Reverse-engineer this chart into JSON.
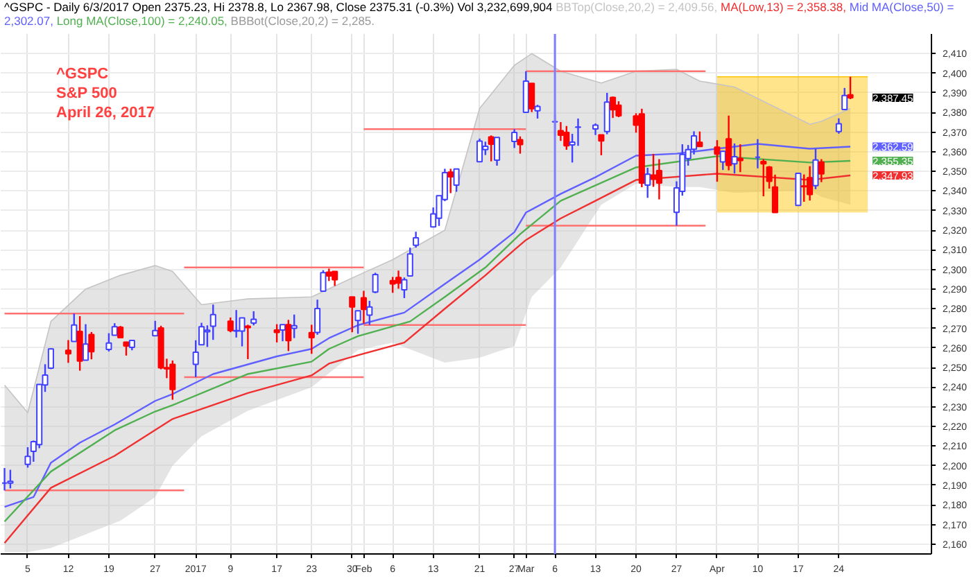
{
  "chart_data": {
    "type": "candlestick",
    "title": "^GSPC - Daily 6/3/2017 Open 2375.23, Hi 2378.8, Lo 2367.98, Close 2375.31 (-0.3%) Vol 3,232,699,904",
    "subtitle": "^GSPC\nS&P 500\nApril 26, 2017",
    "x": [
      "2016-12-01",
      "2016-12-02",
      "2016-12-05",
      "2016-12-06",
      "2016-12-07",
      "2016-12-08",
      "2016-12-09",
      "2016-12-12",
      "2016-12-13",
      "2016-12-14",
      "2016-12-15",
      "2016-12-16",
      "2016-12-19",
      "2016-12-20",
      "2016-12-21",
      "2016-12-22",
      "2016-12-23",
      "2016-12-27",
      "2016-12-28",
      "2016-12-29",
      "2016-12-30",
      "2017-01-03",
      "2017-01-04",
      "2017-01-05",
      "2017-01-06",
      "2017-01-09",
      "2017-01-10",
      "2017-01-11",
      "2017-01-12",
      "2017-01-13",
      "2017-01-17",
      "2017-01-18",
      "2017-01-19",
      "2017-01-20",
      "2017-01-23",
      "2017-01-24",
      "2017-01-25",
      "2017-01-26",
      "2017-01-27",
      "2017-01-30",
      "2017-01-31",
      "2017-02-01",
      "2017-02-02",
      "2017-02-03",
      "2017-02-06",
      "2017-02-07",
      "2017-02-08",
      "2017-02-09",
      "2017-02-10",
      "2017-02-13",
      "2017-02-14",
      "2017-02-15",
      "2017-02-16",
      "2017-02-17",
      "2017-02-21",
      "2017-02-22",
      "2017-02-23",
      "2017-02-24",
      "2017-02-27",
      "2017-02-28",
      "2017-03-01",
      "2017-03-02",
      "2017-03-03",
      "2017-03-06",
      "2017-03-07",
      "2017-03-08",
      "2017-03-09",
      "2017-03-10",
      "2017-03-13",
      "2017-03-14",
      "2017-03-15",
      "2017-03-16",
      "2017-03-17",
      "2017-03-20",
      "2017-03-21",
      "2017-03-22",
      "2017-03-23",
      "2017-03-24",
      "2017-03-27",
      "2017-03-28",
      "2017-03-29",
      "2017-03-30",
      "2017-03-31",
      "2017-04-03",
      "2017-04-04",
      "2017-04-05",
      "2017-04-06",
      "2017-04-07",
      "2017-04-10",
      "2017-04-11",
      "2017-04-12",
      "2017-04-13",
      "2017-04-17",
      "2017-04-18",
      "2017-04-19",
      "2017-04-20",
      "2017-04-21",
      "2017-04-24",
      "2017-04-25",
      "2017-04-26"
    ],
    "ohlc": [
      [
        2191.1,
        2198.8,
        2187.4,
        2191.1
      ],
      [
        2191.1,
        2197.9,
        2188.4,
        2192.0
      ],
      [
        2200.7,
        2209.4,
        2199.0,
        2204.7
      ],
      [
        2207.3,
        2212.8,
        2202.0,
        2212.2
      ],
      [
        2210.7,
        2241.6,
        2208.9,
        2241.4
      ],
      [
        2241.1,
        2251.7,
        2237.6,
        2246.2
      ],
      [
        2249.7,
        2259.8,
        2249.2,
        2259.5
      ],
      [
        2258.8,
        2264.0,
        2252.4,
        2257.0
      ],
      [
        2263.3,
        2277.5,
        2263.3,
        2271.7
      ],
      [
        2268.4,
        2276.2,
        2248.4,
        2253.3
      ],
      [
        2253.8,
        2272.1,
        2253.8,
        2262.0
      ],
      [
        2266.8,
        2268.1,
        2254.2,
        2258.1
      ],
      [
        2259.2,
        2267.5,
        2258.2,
        2262.5
      ],
      [
        2266.5,
        2272.6,
        2266.5,
        2270.8
      ],
      [
        2270.5,
        2271.2,
        2265.1,
        2265.2
      ],
      [
        2262.9,
        2263.2,
        2256.1,
        2261.0
      ],
      [
        2260.3,
        2263.8,
        2258.8,
        2263.8
      ],
      [
        2266.2,
        2273.8,
        2266.2,
        2268.9
      ],
      [
        2270.2,
        2271.3,
        2249.1,
        2249.9
      ],
      [
        2250.0,
        2254.5,
        2244.6,
        2249.3
      ],
      [
        2251.6,
        2253.6,
        2233.6,
        2238.8
      ],
      [
        2251.6,
        2263.9,
        2245.1,
        2257.8
      ],
      [
        2261.6,
        2272.8,
        2261.6,
        2270.8
      ],
      [
        2268.2,
        2271.5,
        2260.5,
        2269.0
      ],
      [
        2271.1,
        2282.1,
        2264.1,
        2277.0
      ],
      [
        2273.6,
        2275.5,
        2268.0,
        2268.9
      ],
      [
        2268.6,
        2279.3,
        2265.3,
        2268.9
      ],
      [
        2268.6,
        2275.3,
        2260.8,
        2275.3
      ],
      [
        2271.1,
        2271.8,
        2254.3,
        2270.4
      ],
      [
        2272.7,
        2278.7,
        2271.5,
        2274.6
      ],
      [
        2269.1,
        2272.1,
        2262.8,
        2267.9
      ],
      [
        2269.1,
        2272.0,
        2263.4,
        2271.9
      ],
      [
        2271.9,
        2274.3,
        2258.4,
        2263.7
      ],
      [
        2270.0,
        2277.0,
        2265.0,
        2271.3
      ],
      [
        2267.8,
        2271.8,
        2257.0,
        2265.2
      ],
      [
        2267.9,
        2284.6,
        2266.7,
        2280.1
      ],
      [
        2288.9,
        2299.6,
        2288.9,
        2298.4
      ],
      [
        2298.6,
        2300.4,
        2294.1,
        2296.7
      ],
      [
        2299.0,
        2299.0,
        2291.6,
        2294.7
      ],
      [
        2286.0,
        2286.0,
        2268.0,
        2280.9
      ],
      [
        2274.0,
        2279.1,
        2267.2,
        2278.9
      ],
      [
        2285.6,
        2289.1,
        2272.4,
        2279.6
      ],
      [
        2276.7,
        2284.0,
        2271.7,
        2280.9
      ],
      [
        2288.5,
        2298.3,
        2287.9,
        2297.4
      ],
      [
        2294.3,
        2296.2,
        2288.1,
        2292.6
      ],
      [
        2295.9,
        2299.4,
        2290.2,
        2293.1
      ],
      [
        2289.6,
        2295.9,
        2285.4,
        2294.7
      ],
      [
        2296.7,
        2311.1,
        2296.6,
        2307.9
      ],
      [
        2312.3,
        2319.2,
        2311.1,
        2316.1
      ],
      [
        2321.7,
        2331.6,
        2321.4,
        2328.3
      ],
      [
        2326.1,
        2337.6,
        2322.2,
        2337.6
      ],
      [
        2335.6,
        2351.3,
        2334.8,
        2349.3
      ],
      [
        2349.6,
        2351.3,
        2338.9,
        2347.2
      ],
      [
        2343.0,
        2351.2,
        2339.6,
        2351.2
      ],
      [
        2354.9,
        2366.7,
        2354.9,
        2365.4
      ],
      [
        2361.1,
        2365.1,
        2358.3,
        2362.8
      ],
      [
        2367.5,
        2368.3,
        2355.1,
        2363.8
      ],
      [
        2355.7,
        2367.3,
        2352.9,
        2367.3
      ],
      [
        2365.2,
        2371.5,
        2361.9,
        2369.8
      ],
      [
        2366.1,
        2367.8,
        2359.0,
        2363.6
      ],
      [
        2380.1,
        2401.0,
        2380.1,
        2396.0
      ],
      [
        2394.8,
        2394.8,
        2380.2,
        2381.9
      ],
      [
        2380.9,
        2383.9,
        2376.9,
        2383.1
      ],
      [
        2375.2,
        2378.8,
        2368.0,
        2375.3
      ],
      [
        2370.7,
        2375.1,
        2365.5,
        2368.4
      ],
      [
        2369.8,
        2373.1,
        2361.0,
        2363.0
      ],
      [
        2363.5,
        2369.1,
        2354.5,
        2364.9
      ],
      [
        2372.5,
        2376.9,
        2363.0,
        2372.6
      ],
      [
        2371.6,
        2374.4,
        2368.5,
        2373.5
      ],
      [
        2368.6,
        2368.6,
        2358.2,
        2365.5
      ],
      [
        2370.3,
        2390.0,
        2368.9,
        2385.3
      ],
      [
        2387.7,
        2388.1,
        2377.2,
        2381.4
      ],
      [
        2383.7,
        2385.7,
        2377.6,
        2378.3
      ],
      [
        2378.2,
        2379.6,
        2369.7,
        2373.5
      ],
      [
        2379.3,
        2381.9,
        2341.9,
        2344.0
      ],
      [
        2343.0,
        2351.8,
        2336.5,
        2348.5
      ],
      [
        2348.1,
        2358.9,
        2342.1,
        2346.0
      ],
      [
        2350.4,
        2356.2,
        2335.7,
        2344.0
      ],
      [
        2329.1,
        2344.9,
        2322.3,
        2341.6
      ],
      [
        2339.8,
        2363.8,
        2337.6,
        2358.6
      ],
      [
        2356.5,
        2363.4,
        2352.9,
        2361.1
      ],
      [
        2361.3,
        2370.4,
        2358.6,
        2368.1
      ],
      [
        2364.8,
        2370.3,
        2362.6,
        2362.7
      ],
      [
        2362.3,
        2365.9,
        2344.7,
        2358.8
      ],
      [
        2354.8,
        2360.5,
        2350.7,
        2360.2
      ],
      [
        2366.6,
        2378.4,
        2350.5,
        2353.0
      ],
      [
        2353.8,
        2364.2,
        2348.9,
        2357.5
      ],
      [
        2356.6,
        2363.8,
        2349.6,
        2355.5
      ],
      [
        2357.2,
        2366.4,
        2351.5,
        2357.2
      ],
      [
        2355.0,
        2356.2,
        2337.3,
        2353.8
      ],
      [
        2352.2,
        2352.7,
        2341.2,
        2344.9
      ],
      [
        2342.0,
        2348.3,
        2329.0,
        2329.0
      ],
      [
        2332.6,
        2349.1,
        2332.5,
        2349.0
      ],
      [
        2342.5,
        2348.4,
        2334.5,
        2342.2
      ],
      [
        2346.8,
        2352.6,
        2335.1,
        2338.2
      ],
      [
        2342.7,
        2361.4,
        2340.9,
        2355.8
      ],
      [
        2354.7,
        2356.2,
        2344.5,
        2348.7
      ],
      [
        2370.3,
        2377.0,
        2369.2,
        2374.2
      ],
      [
        2381.5,
        2392.5,
        2381.2,
        2388.6
      ],
      [
        2389.0,
        2398.2,
        2386.8,
        2387.5
      ]
    ],
    "colors": [
      "#4040ff",
      "#4040ff",
      "#4040ff",
      "#4040ff",
      "#4040ff",
      "#4040ff",
      "#4040ff",
      "#ff0000",
      "#4040ff",
      "#ff0000",
      "#4040ff",
      "#ff0000",
      "#4040ff",
      "#4040ff",
      "#ff0000",
      "#ff0000",
      "#4040ff",
      "#4040ff",
      "#ff0000",
      "#ff0000",
      "#ff0000",
      "#4040ff",
      "#4040ff",
      "#4040ff",
      "#4040ff",
      "#ff0000",
      "#4040ff",
      "#4040ff",
      "#ff0000",
      "#4040ff",
      "#ff0000",
      "#4040ff",
      "#ff0000",
      "#4040ff",
      "#ff0000",
      "#4040ff",
      "#4040ff",
      "#ff0000",
      "#ff0000",
      "#ff0000",
      "#4040ff",
      "#ff0000",
      "#4040ff",
      "#4040ff",
      "#ff0000",
      "#ff0000",
      "#4040ff",
      "#4040ff",
      "#4040ff",
      "#4040ff",
      "#4040ff",
      "#4040ff",
      "#ff0000",
      "#4040ff",
      "#4040ff",
      "#4040ff",
      "#ff0000",
      "#4040ff",
      "#4040ff",
      "#ff0000",
      "#4040ff",
      "#ff0000",
      "#4040ff",
      "#4040ff",
      "#ff0000",
      "#ff0000",
      "#4040ff",
      "#4040ff",
      "#4040ff",
      "#ff0000",
      "#4040ff",
      "#ff0000",
      "#ff0000",
      "#ff0000",
      "#ff0000",
      "#4040ff",
      "#ff0000",
      "#ff0000",
      "#4040ff",
      "#4040ff",
      "#4040ff",
      "#4040ff",
      "#ff0000",
      "#ff0000",
      "#4040ff",
      "#ff0000",
      "#4040ff",
      "#ff0000",
      "#4040ff",
      "#ff0000",
      "#ff0000",
      "#ff0000",
      "#4040ff",
      "#ff0000",
      "#ff0000",
      "#4040ff",
      "#ff0000",
      "#4040ff",
      "#4040ff",
      "#ff0000"
    ],
    "series": [
      {
        "name": "BBTop(Close,20,2) = 2,409.56,",
        "type": "line",
        "color": "#c4c4c4",
        "upper": [
          2241,
          2227,
          2273.5,
          2290,
          2297,
          2302,
          2299,
          2282,
          2285,
          2286,
          2297,
          2305,
          2320,
          2382,
          2404,
          2410,
          2401,
          2395,
          2401,
          2402,
          2396,
          2393,
          2374,
          2375.5,
          2382
        ],
        "x": [
          "2016-12-01",
          "2016-12-05",
          "2016-12-09",
          "2016-12-15",
          "2016-12-21",
          "2016-12-27",
          "2016-12-30",
          "2017-01-04",
          "2017-01-12",
          "2017-01-23",
          "2017-01-31",
          "2017-02-06",
          "2017-02-15",
          "2017-02-21",
          "2017-02-27",
          "2017-03-02",
          "2017-03-07",
          "2017-03-14",
          "2017-03-20",
          "2017-03-27",
          "2017-03-31",
          "2017-04-06",
          "2017-04-19",
          "2017-04-21",
          "2017-04-26"
        ],
        "values": [
          2241,
          2227,
          2273.5,
          2290,
          2297,
          2302,
          2299,
          2282,
          2285,
          2286,
          2297,
          2305,
          2320,
          2382,
          2404,
          2410,
          2401,
          2395,
          2401,
          2402,
          2396,
          2393,
          2374,
          2375.5,
          2382
        ],
        "lower": [
          2156,
          2156,
          2158,
          2165,
          2172,
          2184,
          2200,
          2215,
          2228,
          2240,
          2259,
          2262.7,
          2252.5,
          2255,
          2261,
          2286,
          2301,
          2333,
          2343.7,
          2342,
          2342,
          2339,
          2340.5,
          2337,
          2333
        ]
      },
      {
        "type": "line",
        "color": "#ffc400",
        "x": [
          "2017-04-03",
          "2017-04-29"
        ],
        "values": [
          2398.2,
          2398.2
        ],
        "upper": [
          2398.2,
          2398.2
        ],
        "lower": [
          2329.0,
          2329.0
        ]
      },
      {
        "type": "line",
        "color": "#ff7070",
        "x": [
          "2016-12-01",
          "2017-01-01"
        ],
        "values": [
          2277.5,
          2277.5
        ]
      },
      {
        "type": "line",
        "color": "#ff7070",
        "x": [
          "2016-12-01",
          "2017-01-01"
        ],
        "values": [
          2187.4,
          2187.4
        ]
      },
      {
        "type": "line",
        "color": "#ff7070",
        "x": [
          "2017-01-01",
          "2017-02-01"
        ],
        "values": [
          2301.0,
          2301.0
        ]
      },
      {
        "type": "line",
        "color": "#ff7070",
        "x": [
          "2017-01-01",
          "2017-02-01"
        ],
        "values": [
          2245.1,
          2245.1
        ]
      },
      {
        "type": "line",
        "color": "#ff7070",
        "x": [
          "2017-02-01",
          "2017-03-01"
        ],
        "values": [
          2371.5,
          2371.5
        ]
      },
      {
        "type": "line",
        "color": "#ff7070",
        "x": [
          "2017-02-01",
          "2017-03-01"
        ],
        "values": [
          2271.7,
          2271.7
        ]
      },
      {
        "type": "line",
        "color": "#ff7070",
        "x": [
          "2017-03-01",
          "2017-04-01"
        ],
        "values": [
          2401.0,
          2401.0
        ]
      },
      {
        "type": "line",
        "color": "#ff7070",
        "x": [
          "2017-03-01",
          "2017-04-01"
        ],
        "values": [
          2322.3,
          2322.3
        ]
      },
      {
        "name": "MA(Low,13) = 2,358.38,",
        "type": "line",
        "color": "#f03030",
        "x": [
          "2016-12-01",
          "2016-12-09",
          "2016-12-20",
          "2016-12-30",
          "2017-01-12",
          "2017-01-23",
          "2017-01-26",
          "2017-01-31",
          "2017-02-08",
          "2017-02-15",
          "2017-02-22",
          "2017-02-27",
          "2017-03-01",
          "2017-03-07",
          "2017-03-13",
          "2017-03-20",
          "2017-04-03",
          "2017-04-19",
          "2017-04-26"
        ],
        "values": [
          2160.6,
          2188.7,
          2205,
          2223.8,
          2237,
          2246,
          2252,
          2256.3,
          2262.7,
          2280,
          2297,
          2310,
          2315,
          2326,
          2335,
          2345.6,
          2348.8,
          2345.6,
          2347.93
        ]
      },
      {
        "name": "Mid MA(Close,50) = 2,302.07,",
        "type": "line",
        "color": "#6060ff",
        "x": [
          "2016-12-01",
          "2016-12-06",
          "2016-12-09",
          "2016-12-14",
          "2016-12-20",
          "2016-12-27",
          "2016-12-30",
          "2017-01-06",
          "2017-01-17",
          "2017-01-23",
          "2017-01-26",
          "2017-01-31",
          "2017-02-08",
          "2017-02-15",
          "2017-02-21",
          "2017-02-27",
          "2017-03-01",
          "2017-03-07",
          "2017-03-13",
          "2017-03-20",
          "2017-03-27",
          "2017-04-03",
          "2017-04-10",
          "2017-04-19",
          "2017-04-26"
        ],
        "values": [
          2179,
          2184,
          2201.5,
          2211.7,
          2221,
          2233,
          2236.5,
          2246.7,
          2255.7,
          2259.5,
          2265,
          2271.6,
          2278,
          2292.6,
          2305,
          2319,
          2329,
          2338.5,
          2347,
          2358,
          2359,
          2361.5,
          2364,
          2361.5,
          2362.59
        ]
      },
      {
        "name": "Long MA(Close,100) = 2,240.05,",
        "type": "line",
        "color": "#50b050",
        "x": [
          "2016-12-01",
          "2016-12-09",
          "2016-12-20",
          "2016-12-27",
          "2016-12-30",
          "2017-01-12",
          "2017-01-23",
          "2017-01-26",
          "2017-01-31",
          "2017-02-09",
          "2017-02-15",
          "2017-02-22",
          "2017-02-28",
          "2017-03-07",
          "2017-03-20",
          "2017-04-03",
          "2017-04-19",
          "2017-04-26"
        ],
        "values": [
          2171.5,
          2197,
          2218,
          2227.6,
          2230.8,
          2246.7,
          2253,
          2259.5,
          2266,
          2273.5,
          2286,
          2301,
          2318,
          2335,
          2352,
          2357.7,
          2354.5,
          2355.35
        ]
      }
    ],
    "ref_lines": [
      {
        "axis": "x",
        "value": "2017-03-06",
        "color": "#8080ff"
      }
    ],
    "annotations": [
      "BBBot(Close,20,2) = 2,285.",
      {
        "text": "2,387.45",
        "x": "2017-04-26",
        "y": 2387.45
      },
      {
        "text": "2,362.59",
        "x": "2017-04-26",
        "y": 2362.59
      },
      {
        "text": "2,355.35",
        "x": "2017-04-26",
        "y": 2355.35
      },
      {
        "text": "2,347.93",
        "x": "2017-04-26",
        "y": 2347.93
      }
    ],
    "xlim": [
      "2016-11-30T08:00",
      "2017-05-10"
    ],
    "ylim": [
      2155,
      2420
    ],
    "xticks": [
      {
        "value": "2016-12-05",
        "label": "5"
      },
      {
        "value": "2016-12-12",
        "label": "12"
      },
      {
        "value": "2016-12-19",
        "label": "19"
      },
      {
        "value": "2016-12-27",
        "label": "27"
      },
      {
        "value": "2017-01-03",
        "label": "2017"
      },
      {
        "value": "2017-01-09",
        "label": "9"
      },
      {
        "value": "2017-01-17",
        "label": "17"
      },
      {
        "value": "2017-01-23",
        "label": "23"
      },
      {
        "value": "2017-01-30",
        "label": "30"
      },
      {
        "value": "2017-02-01",
        "label": "Feb"
      },
      {
        "value": "2017-02-06",
        "label": "6"
      },
      {
        "value": "2017-02-13",
        "label": "13"
      },
      {
        "value": "2017-02-21",
        "label": "21"
      },
      {
        "value": "2017-02-27",
        "label": "27"
      },
      {
        "value": "2017-03-01",
        "label": "Mar"
      },
      {
        "value": "2017-03-06",
        "label": "6"
      },
      {
        "value": "2017-03-13",
        "label": "13"
      },
      {
        "value": "2017-03-20",
        "label": "20"
      },
      {
        "value": "2017-03-27",
        "label": "27"
      },
      {
        "value": "2017-04-03",
        "label": "Apr"
      },
      {
        "value": "2017-04-10",
        "label": "10"
      },
      {
        "value": "2017-04-17",
        "label": "17"
      },
      {
        "value": "2017-04-24",
        "label": "24"
      }
    ],
    "yticks": [
      {
        "value": 2160,
        "label": "2,160"
      },
      {
        "value": 2170,
        "label": "2,170"
      },
      {
        "value": 2180,
        "label": "2,180"
      },
      {
        "value": 2190,
        "label": "2,190"
      },
      {
        "value": 2200,
        "label": "2,200"
      },
      {
        "value": 2210,
        "label": "2,210"
      },
      {
        "value": 2220,
        "label": "2,220"
      },
      {
        "value": 2230,
        "label": "2,230"
      },
      {
        "value": 2240,
        "label": "2,240"
      },
      {
        "value": 2250,
        "label": "2,250"
      },
      {
        "value": 2260,
        "label": "2,260"
      },
      {
        "value": 2270,
        "label": "2,270"
      },
      {
        "value": 2280,
        "label": "2,280"
      },
      {
        "value": 2290,
        "label": "2,290"
      },
      {
        "value": 2300,
        "label": "2,300"
      },
      {
        "value": 2310,
        "label": "2,310"
      },
      {
        "value": 2320,
        "label": "2,320"
      },
      {
        "value": 2330,
        "label": "2,330"
      },
      {
        "value": 2340,
        "label": "2,340"
      },
      {
        "value": 2350,
        "label": "2,350"
      },
      {
        "value": 2360,
        "label": "2,360"
      },
      {
        "value": 2370,
        "label": "2,370"
      },
      {
        "value": 2380,
        "label": "2,380"
      },
      {
        "value": 2390,
        "label": "2,390"
      },
      {
        "value": 2400,
        "label": "2,400"
      },
      {
        "value": 2410,
        "label": "2,410"
      }
    ],
    "grid": true
  }
}
